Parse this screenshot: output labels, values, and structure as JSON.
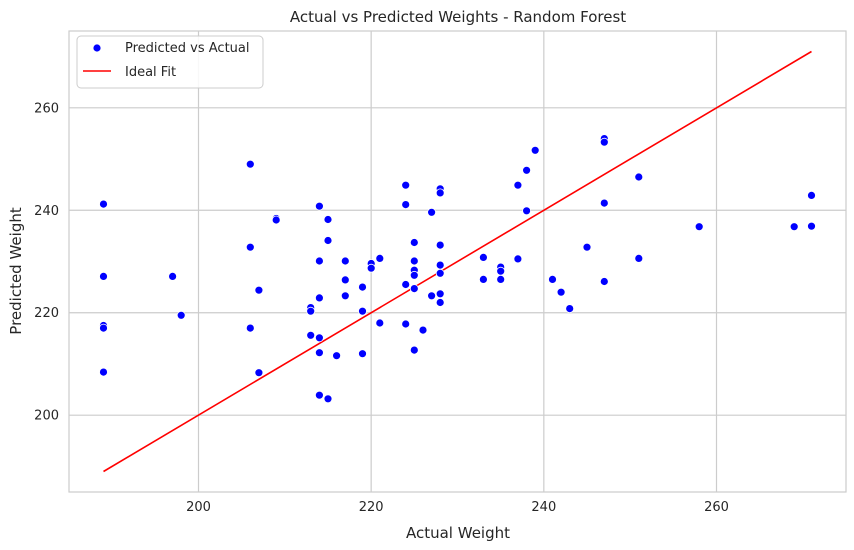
{
  "chart_data": {
    "type": "scatter",
    "title": "Actual vs Predicted Weights - Random Forest",
    "xlabel": "Actual Weight",
    "ylabel": "Predicted Weight",
    "xlim": [
      185,
      275
    ],
    "ylim": [
      185,
      275
    ],
    "xticks": [
      200,
      220,
      240,
      260
    ],
    "yticks": [
      200,
      220,
      240,
      260
    ],
    "grid": true,
    "legend_position": "top-left",
    "colors": {
      "points": "#0000ff",
      "ideal_line": "#ff0000",
      "grid": "#cccccc",
      "frame": "#cccccc"
    },
    "series": [
      {
        "name": "Predicted vs Actual",
        "kind": "scatter",
        "points": [
          [
            189,
            241.2
          ],
          [
            189,
            227.1
          ],
          [
            189,
            217.5
          ],
          [
            189,
            217.0
          ],
          [
            189,
            208.4
          ],
          [
            197,
            227.1
          ],
          [
            198,
            219.5
          ],
          [
            206,
            249.0
          ],
          [
            206,
            232.8
          ],
          [
            206,
            217.0
          ],
          [
            207,
            224.4
          ],
          [
            207,
            208.3
          ],
          [
            209,
            238.4
          ],
          [
            209,
            238.1
          ],
          [
            213,
            221.0
          ],
          [
            213,
            220.3
          ],
          [
            213,
            215.6
          ],
          [
            214,
            240.8
          ],
          [
            214,
            230.1
          ],
          [
            214,
            222.9
          ],
          [
            214,
            215.1
          ],
          [
            214,
            212.2
          ],
          [
            214,
            203.9
          ],
          [
            215,
            238.2
          ],
          [
            215,
            234.1
          ],
          [
            215,
            203.2
          ],
          [
            216,
            211.6
          ],
          [
            217,
            230.1
          ],
          [
            217,
            226.4
          ],
          [
            217,
            223.3
          ],
          [
            219,
            225.0
          ],
          [
            219,
            220.3
          ],
          [
            219,
            212.0
          ],
          [
            220,
            229.6
          ],
          [
            220,
            228.7
          ],
          [
            221,
            230.6
          ],
          [
            221,
            218.0
          ],
          [
            224,
            244.9
          ],
          [
            224,
            241.1
          ],
          [
            224,
            225.5
          ],
          [
            224,
            217.8
          ],
          [
            225,
            233.7
          ],
          [
            225,
            230.1
          ],
          [
            225,
            228.3
          ],
          [
            225,
            227.3
          ],
          [
            225,
            224.7
          ],
          [
            225,
            212.7
          ],
          [
            226,
            216.6
          ],
          [
            227,
            239.6
          ],
          [
            227,
            223.3
          ],
          [
            228,
            244.2
          ],
          [
            228,
            243.4
          ],
          [
            228,
            233.2
          ],
          [
            228,
            229.3
          ],
          [
            228,
            227.7
          ],
          [
            228,
            223.7
          ],
          [
            228,
            222.0
          ],
          [
            233,
            230.8
          ],
          [
            233,
            226.5
          ],
          [
            235,
            228.9
          ],
          [
            235,
            228.1
          ],
          [
            235,
            226.5
          ],
          [
            237,
            244.9
          ],
          [
            237,
            230.5
          ],
          [
            238,
            247.8
          ],
          [
            238,
            239.9
          ],
          [
            239,
            251.7
          ],
          [
            241,
            226.5
          ],
          [
            242,
            224.0
          ],
          [
            243,
            220.8
          ],
          [
            245,
            232.8
          ],
          [
            247,
            254.0
          ],
          [
            247,
            253.3
          ],
          [
            247,
            241.4
          ],
          [
            247,
            226.1
          ],
          [
            251,
            246.5
          ],
          [
            251,
            230.6
          ],
          [
            258,
            236.9
          ],
          [
            258,
            236.8
          ],
          [
            269,
            236.8
          ],
          [
            271,
            242.9
          ],
          [
            271,
            236.9
          ]
        ]
      },
      {
        "name": "Ideal Fit",
        "kind": "line",
        "points": [
          [
            189,
            189
          ],
          [
            271,
            271
          ]
        ]
      }
    ]
  }
}
